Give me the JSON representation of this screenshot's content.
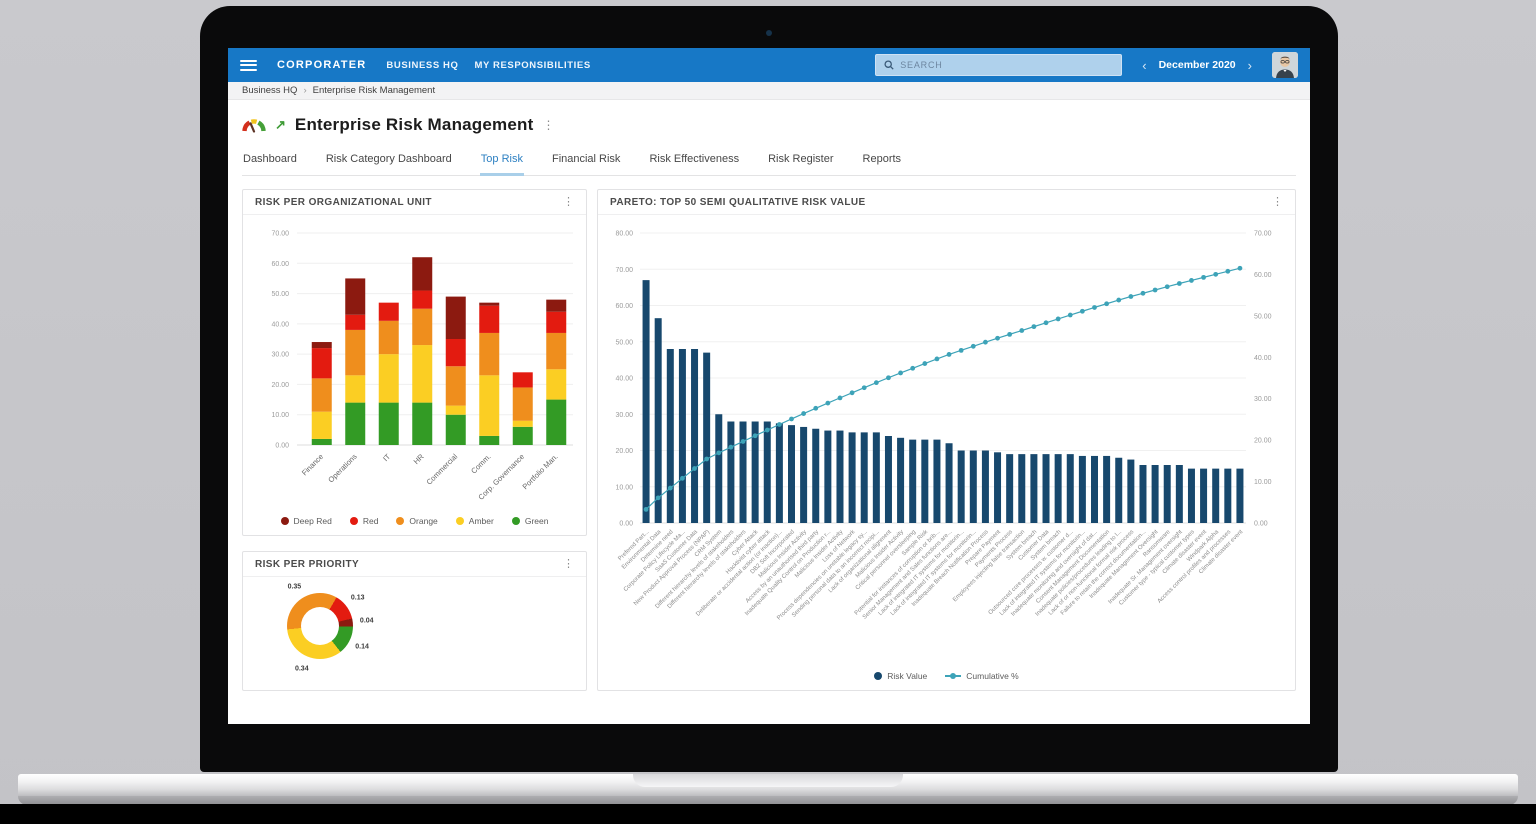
{
  "header": {
    "logo_text": "CORPORATER",
    "nav_items": [
      "BUSINESS HQ",
      "MY RESPONSIBILITIES"
    ],
    "search_placeholder": "SEARCH",
    "period_label": "December 2020"
  },
  "breadcrumb": {
    "items": [
      "Business HQ",
      "Enterprise Risk Management"
    ],
    "separator": "›"
  },
  "page": {
    "title": "Enterprise Risk Management"
  },
  "tabs": [
    {
      "label": "Dashboard",
      "active": false
    },
    {
      "label": "Risk Category Dashboard",
      "active": false
    },
    {
      "label": "Top Risk",
      "active": true
    },
    {
      "label": "Financial Risk",
      "active": false
    },
    {
      "label": "Risk Effectiveness",
      "active": false
    },
    {
      "label": "Risk Register",
      "active": false
    },
    {
      "label": "Reports",
      "active": false
    }
  ],
  "icons": {
    "kebab": "⋮",
    "chevron_left": "‹",
    "chevron_right": "›",
    "trend_arrow": "↗"
  },
  "colors": {
    "header_blue": "#1778C6",
    "active_tab_blue": "#2D80C2",
    "deep_red": "#8C1A10",
    "red": "#E31B10",
    "orange": "#EF8E1D",
    "amber": "#FBCE23",
    "green": "#339B25",
    "bar_navy": "#17486D",
    "line_teal": "#3DA3B8"
  },
  "chart_data": [
    {
      "id": "risk_per_org_unit",
      "type": "bar",
      "stacked": true,
      "title": "RISK PER ORGANIZATIONAL UNIT",
      "categories": [
        "Finance",
        "Operations",
        "IT",
        "HR",
        "Commercial",
        "Comm.",
        "Corp. Governance",
        "Portfolio Man."
      ],
      "series": [
        {
          "name": "Green",
          "color": "#339B25",
          "values": [
            2,
            14,
            14,
            14,
            10,
            3,
            6,
            15
          ]
        },
        {
          "name": "Amber",
          "color": "#FBCE23",
          "values": [
            9,
            9,
            16,
            19,
            3,
            20,
            2,
            10
          ]
        },
        {
          "name": "Orange",
          "color": "#EF8E1D",
          "values": [
            11,
            15,
            11,
            12,
            13,
            14,
            11,
            12
          ]
        },
        {
          "name": "Red",
          "color": "#E31B10",
          "values": [
            10,
            5,
            6,
            6,
            9,
            9,
            5,
            7
          ]
        },
        {
          "name": "Deep Red",
          "color": "#8C1A10",
          "values": [
            2,
            12,
            0,
            11,
            14,
            1,
            0,
            4
          ]
        }
      ],
      "legend": [
        {
          "label": "Deep Red",
          "color": "#8C1A10"
        },
        {
          "label": "Red",
          "color": "#E31B10"
        },
        {
          "label": "Orange",
          "color": "#EF8E1D"
        },
        {
          "label": "Amber",
          "color": "#FBCE23"
        },
        {
          "label": "Green",
          "color": "#339B25"
        }
      ],
      "ylim": [
        0,
        70
      ],
      "ytick_step": 10,
      "grid": true,
      "legend_position": "bottom"
    },
    {
      "id": "risk_per_priority",
      "type": "pie",
      "title": "RISK PER PRIORITY",
      "start_angle_deg": 30,
      "slices": [
        {
          "label": "0.13",
          "value": 0.13,
          "color": "#E31B10"
        },
        {
          "label": "0.04",
          "value": 0.04,
          "color": "#8C1A10"
        },
        {
          "label": "0.14",
          "value": 0.14,
          "color": "#339B25"
        },
        {
          "label": "0.34",
          "value": 0.34,
          "color": "#FBCE23"
        },
        {
          "label": "0.35",
          "value": 0.35,
          "color": "#EF8E1D"
        }
      ]
    },
    {
      "id": "pareto_top50",
      "type": "bar+line",
      "title": "PARETO: TOP 50 SEMI QUALITATIVE RISK VALUE",
      "left_ylim": [
        0,
        80
      ],
      "right_ylim": [
        0,
        70
      ],
      "ytick_step": 10,
      "grid": true,
      "legend_position": "bottom",
      "categories": [
        "Prefered Part...",
        "Environmental Data",
        "Determine need",
        "Corporate Policy Lifecycle Ma...",
        "SaaS Customer Data",
        "New Product Approval Process (NPAP)",
        "CRM System",
        "Different hierarchy levels of stakeholders",
        "Different hierarchy levels of stakeholders",
        "Cyber Attack",
        "Hacktivist cyber attack",
        "Deliberate or accidental action (or inaction)...",
        "DB2 Soft Incorporated",
        "Malicious Insider Activity",
        "Access by an unauthorised third party",
        "Inadequate Quality Control on Production r...",
        "Malicious Insider Activity",
        "Loss of Network",
        "Process dependencies on unstable legacy sy...",
        "Sending personal data to an incorrect recipi...",
        "Lack of organizational alignment",
        "Malicious Insider Activity",
        "Critical personnel oversleeping",
        "Sample Risk",
        "Potential for instances of corruption or brib...",
        "Senior Management and Sales functions are...",
        "Lack of integrated IT systems for monitorin...",
        "Lack of integrated IT systems for monitorin...",
        "Inadequate Breach Notification Process",
        "Prepare Payment",
        "Payments Process",
        "Employees injecting false transaction",
        "System breach",
        "Customer Data",
        "System breach",
        "Outsourced core processes w. customer d...",
        "Lack of integrated IT systems for monitorin...",
        "Inadequate monitoring and oversight of dat...",
        "Consent Management Documentation",
        "Inadequate policies/procedures leading to l...",
        "Lack of or non-functional formal risk process",
        "Failure to retain the correct documentation...",
        "Inadequate Management Oversight",
        "Ransomware",
        "Inadequate Sr. Management oversight",
        "Customer type - typical customer types",
        "Climate disaster event",
        "Windpark Alpha",
        "Access control profiles and processes",
        "Climate disaster event"
      ],
      "bars": {
        "name": "Risk Value",
        "color": "#17486D",
        "values": [
          67,
          56.5,
          48,
          48,
          48,
          47,
          30,
          28,
          28,
          28,
          28,
          27.5,
          27,
          26.5,
          26,
          25.5,
          25.5,
          25,
          25,
          25,
          24,
          23.5,
          23,
          23,
          23,
          22,
          20,
          20,
          20,
          19.5,
          19,
          19,
          19,
          19,
          19,
          19,
          18.5,
          18.5,
          18.5,
          18,
          17.5,
          16,
          16,
          16,
          16,
          15,
          15,
          15,
          15,
          15
        ]
      },
      "line": {
        "name": "Cumulative %",
        "color": "#3DA3B8",
        "values": [
          3.29,
          6.07,
          8.43,
          10.79,
          13.14,
          15.45,
          16.93,
          18.3,
          19.68,
          21.06,
          22.43,
          23.78,
          25.11,
          26.41,
          27.69,
          28.94,
          30.2,
          31.43,
          32.65,
          33.88,
          35.06,
          36.22,
          37.35,
          38.48,
          39.61,
          40.69,
          41.67,
          42.65,
          43.64,
          44.6,
          45.53,
          46.46,
          47.4,
          48.33,
          49.26,
          50.2,
          51.11,
          52.02,
          52.92,
          53.81,
          54.67,
          55.45,
          56.24,
          57.03,
          57.81,
          58.55,
          59.29,
          60.02,
          60.76,
          61.5
        ]
      }
    }
  ]
}
